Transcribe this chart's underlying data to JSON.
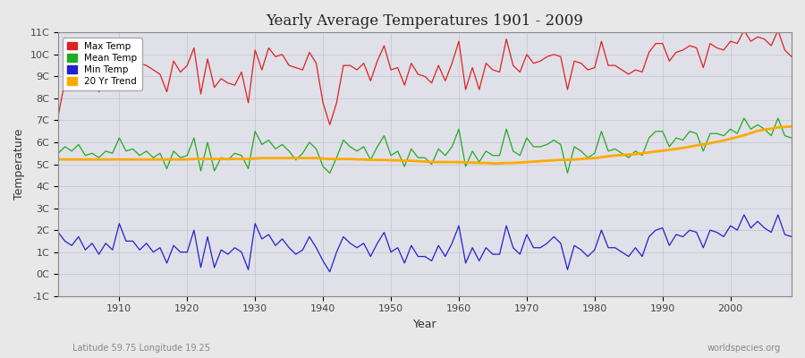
{
  "title": "Yearly Average Temperatures 1901 - 2009",
  "xlabel": "Year",
  "ylabel": "Temperature",
  "subtitle_left": "Latitude 59.75 Longitude 19.25",
  "subtitle_right": "worldspecies.org",
  "years": [
    1901,
    1902,
    1903,
    1904,
    1905,
    1906,
    1907,
    1908,
    1909,
    1910,
    1911,
    1912,
    1913,
    1914,
    1915,
    1916,
    1917,
    1918,
    1919,
    1920,
    1921,
    1922,
    1923,
    1924,
    1925,
    1926,
    1927,
    1928,
    1929,
    1930,
    1931,
    1932,
    1933,
    1934,
    1935,
    1936,
    1937,
    1938,
    1939,
    1940,
    1941,
    1942,
    1943,
    1944,
    1945,
    1946,
    1947,
    1948,
    1949,
    1950,
    1951,
    1952,
    1953,
    1954,
    1955,
    1956,
    1957,
    1958,
    1959,
    1960,
    1961,
    1962,
    1963,
    1964,
    1965,
    1966,
    1967,
    1968,
    1969,
    1970,
    1971,
    1972,
    1973,
    1974,
    1975,
    1976,
    1977,
    1978,
    1979,
    1980,
    1981,
    1982,
    1983,
    1984,
    1985,
    1986,
    1987,
    1988,
    1989,
    1990,
    1991,
    1992,
    1993,
    1994,
    1995,
    1996,
    1997,
    1998,
    1999,
    2000,
    2001,
    2002,
    2003,
    2004,
    2005,
    2006,
    2007,
    2008,
    2009
  ],
  "max_temp": [
    7.2,
    8.8,
    8.7,
    8.5,
    8.4,
    8.7,
    8.3,
    8.6,
    8.8,
    10.5,
    9.4,
    9.8,
    9.6,
    9.5,
    9.3,
    9.1,
    8.3,
    9.7,
    9.2,
    9.5,
    10.3,
    8.2,
    9.8,
    8.5,
    8.9,
    8.7,
    8.6,
    9.2,
    7.8,
    10.2,
    9.3,
    10.3,
    9.9,
    10.0,
    9.5,
    9.4,
    9.3,
    10.1,
    9.6,
    7.8,
    6.8,
    7.8,
    9.5,
    9.5,
    9.3,
    9.6,
    8.8,
    9.7,
    10.4,
    9.3,
    9.4,
    8.6,
    9.6,
    9.1,
    9.0,
    8.7,
    9.5,
    8.8,
    9.6,
    10.6,
    8.4,
    9.4,
    8.4,
    9.6,
    9.3,
    9.2,
    10.7,
    9.5,
    9.2,
    10.0,
    9.6,
    9.7,
    9.9,
    10.0,
    9.9,
    8.4,
    9.7,
    9.6,
    9.3,
    9.4,
    10.6,
    9.5,
    9.5,
    9.3,
    9.1,
    9.3,
    9.2,
    10.1,
    10.5,
    10.5,
    9.7,
    10.1,
    10.2,
    10.4,
    10.3,
    9.4,
    10.5,
    10.3,
    10.2,
    10.6,
    10.5,
    11.1,
    10.6,
    10.8,
    10.7,
    10.4,
    11.1,
    10.2,
    9.9
  ],
  "mean_temp": [
    5.5,
    5.8,
    5.6,
    5.9,
    5.4,
    5.5,
    5.3,
    5.6,
    5.5,
    6.2,
    5.6,
    5.7,
    5.4,
    5.6,
    5.3,
    5.5,
    4.8,
    5.6,
    5.3,
    5.4,
    6.2,
    4.7,
    6.0,
    4.7,
    5.3,
    5.2,
    5.5,
    5.4,
    4.8,
    6.5,
    5.9,
    6.1,
    5.7,
    5.9,
    5.6,
    5.2,
    5.5,
    6.0,
    5.7,
    4.9,
    4.6,
    5.3,
    6.1,
    5.8,
    5.6,
    5.8,
    5.2,
    5.8,
    6.3,
    5.4,
    5.6,
    4.9,
    5.7,
    5.3,
    5.3,
    5.0,
    5.7,
    5.4,
    5.8,
    6.6,
    4.9,
    5.6,
    5.1,
    5.6,
    5.4,
    5.4,
    6.6,
    5.6,
    5.4,
    6.2,
    5.8,
    5.8,
    5.9,
    6.1,
    5.9,
    4.6,
    5.8,
    5.6,
    5.3,
    5.5,
    6.5,
    5.6,
    5.7,
    5.5,
    5.3,
    5.6,
    5.4,
    6.2,
    6.5,
    6.5,
    5.8,
    6.2,
    6.1,
    6.5,
    6.4,
    5.6,
    6.4,
    6.4,
    6.3,
    6.6,
    6.4,
    7.1,
    6.6,
    6.8,
    6.6,
    6.3,
    7.1,
    6.3,
    6.2
  ],
  "min_temp": [
    1.9,
    1.5,
    1.3,
    1.7,
    1.1,
    1.4,
    0.9,
    1.4,
    1.1,
    2.3,
    1.5,
    1.5,
    1.1,
    1.4,
    1.0,
    1.2,
    0.5,
    1.3,
    1.0,
    1.0,
    2.0,
    0.3,
    1.7,
    0.3,
    1.1,
    0.9,
    1.2,
    1.0,
    0.2,
    2.3,
    1.6,
    1.8,
    1.3,
    1.6,
    1.2,
    0.9,
    1.1,
    1.7,
    1.2,
    0.6,
    0.1,
    1.0,
    1.7,
    1.4,
    1.2,
    1.4,
    0.8,
    1.4,
    1.9,
    1.0,
    1.2,
    0.5,
    1.3,
    0.8,
    0.8,
    0.6,
    1.3,
    0.8,
    1.4,
    2.2,
    0.5,
    1.2,
    0.6,
    1.2,
    0.9,
    0.9,
    2.2,
    1.2,
    0.9,
    1.8,
    1.2,
    1.2,
    1.4,
    1.7,
    1.4,
    0.2,
    1.3,
    1.1,
    0.8,
    1.1,
    2.0,
    1.2,
    1.2,
    1.0,
    0.8,
    1.2,
    0.8,
    1.7,
    2.0,
    2.1,
    1.3,
    1.8,
    1.7,
    2.0,
    1.9,
    1.2,
    2.0,
    1.9,
    1.7,
    2.2,
    2.0,
    2.7,
    2.1,
    2.4,
    2.1,
    1.9,
    2.7,
    1.8,
    1.7
  ],
  "trend": [
    5.22,
    5.22,
    5.22,
    5.22,
    5.22,
    5.22,
    5.22,
    5.22,
    5.22,
    5.22,
    5.22,
    5.22,
    5.22,
    5.22,
    5.22,
    5.22,
    5.22,
    5.22,
    5.22,
    5.22,
    5.24,
    5.24,
    5.24,
    5.24,
    5.24,
    5.24,
    5.24,
    5.24,
    5.24,
    5.26,
    5.28,
    5.28,
    5.28,
    5.28,
    5.28,
    5.28,
    5.28,
    5.28,
    5.28,
    5.26,
    5.24,
    5.24,
    5.24,
    5.24,
    5.22,
    5.22,
    5.2,
    5.2,
    5.2,
    5.18,
    5.18,
    5.16,
    5.16,
    5.14,
    5.12,
    5.1,
    5.1,
    5.1,
    5.1,
    5.1,
    5.08,
    5.08,
    5.06,
    5.06,
    5.04,
    5.04,
    5.06,
    5.06,
    5.08,
    5.1,
    5.12,
    5.14,
    5.16,
    5.18,
    5.2,
    5.2,
    5.22,
    5.24,
    5.26,
    5.28,
    5.32,
    5.36,
    5.4,
    5.42,
    5.44,
    5.46,
    5.5,
    5.54,
    5.58,
    5.62,
    5.66,
    5.7,
    5.74,
    5.8,
    5.86,
    5.9,
    5.96,
    6.02,
    6.08,
    6.16,
    6.24,
    6.32,
    6.42,
    6.52,
    6.58,
    6.62,
    6.68,
    6.7,
    6.72
  ],
  "max_color": "#dd2222",
  "mean_color": "#22aa22",
  "min_color": "#2222cc",
  "trend_color": "#ffaa00",
  "bg_color": "#e8e8e8",
  "plot_bg_color": "#e0e0e8",
  "grid_color": "#bbbbcc",
  "ylim_min": -1,
  "ylim_max": 11,
  "yticks": [
    -1,
    0,
    1,
    2,
    3,
    4,
    5,
    6,
    7,
    8,
    9,
    10,
    11
  ],
  "ytick_labels": [
    "-1C",
    "0C",
    "1C",
    "2C",
    "3C",
    "4C",
    "5C",
    "6C",
    "7C",
    "8C",
    "9C",
    "10C",
    "11C"
  ],
  "xtick_start": 1910,
  "xtick_end": 2000,
  "xtick_step": 10
}
